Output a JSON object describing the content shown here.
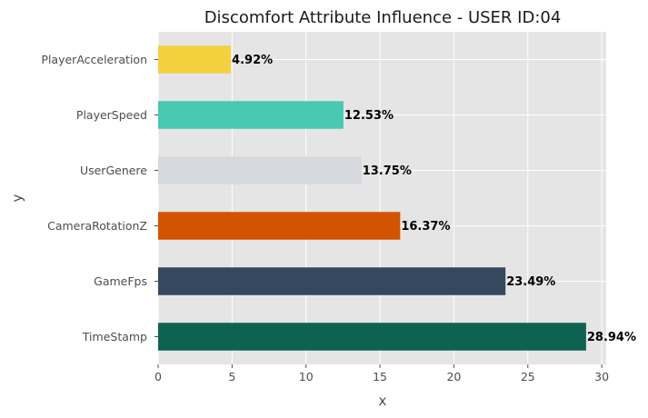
{
  "chart_data": {
    "type": "bar",
    "orientation": "horizontal",
    "title": "Discomfort Attribute Influence - USER ID:04",
    "xlabel": "x",
    "ylabel": "y",
    "xlim": [
      0,
      30.3
    ],
    "xticks": [
      0,
      5,
      10,
      15,
      20,
      25,
      30
    ],
    "grid": true,
    "categories": [
      "PlayerAcceleration",
      "PlayerSpeed",
      "UserGenere",
      "CameraRotationZ",
      "GameFps",
      "TimeStamp"
    ],
    "values": [
      4.92,
      12.53,
      13.75,
      16.37,
      23.49,
      28.94
    ],
    "value_labels": [
      "4.92%",
      "12.53%",
      "13.75%",
      "16.37%",
      "23.49%",
      "28.94%"
    ],
    "colors": [
      "#f4d03f",
      "#48c9b0",
      "#d5d8dc",
      "#d35400",
      "#34495e",
      "#0e6251"
    ],
    "background": "#e5e5e5",
    "grid_color": "#ffffff"
  }
}
